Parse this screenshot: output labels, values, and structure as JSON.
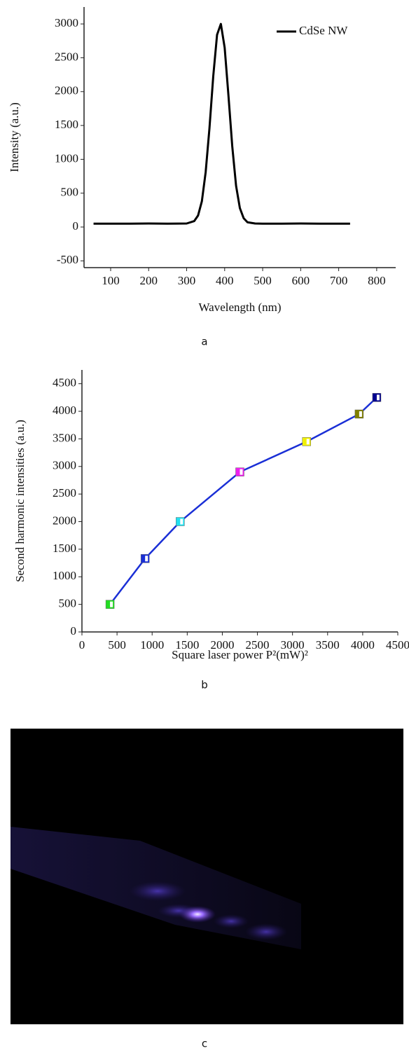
{
  "chart_data": [
    {
      "type": "line",
      "ylabel": "Intensity (a.u.)",
      "xlabel": "Wavelength (nm)",
      "x": [
        55,
        100,
        150,
        200,
        250,
        300,
        320,
        330,
        340,
        350,
        360,
        370,
        380,
        390,
        400,
        410,
        420,
        430,
        440,
        450,
        460,
        480,
        500,
        550,
        600,
        650,
        700,
        730
      ],
      "series": [
        {
          "name": "CdSe NW",
          "color": "#000000",
          "values": [
            50,
            50,
            50,
            52,
            50,
            52,
            88,
            170,
            380,
            810,
            1460,
            2230,
            2840,
            3000,
            2650,
            1940,
            1190,
            610,
            280,
            130,
            70,
            52,
            50,
            50,
            52,
            50,
            50,
            50
          ]
        }
      ],
      "xlim": [
        30,
        850
      ],
      "xticks": [
        100,
        200,
        300,
        400,
        500,
        600,
        700,
        800
      ],
      "ylim": [
        -600,
        3250
      ],
      "yticks": [
        -500,
        0,
        500,
        1000,
        1500,
        2000,
        2500,
        3000
      ],
      "legend": "upper right",
      "grid": false,
      "caption": "a"
    },
    {
      "type": "line",
      "ylabel": "Second harmonic intensities (a.u.)",
      "xlabel": "Square laser power P²(mW)²",
      "x": [
        400,
        900,
        1400,
        2250,
        3200,
        3950,
        4200
      ],
      "series": [
        {
          "color": "#1a2fd6",
          "values": [
            500,
            1330,
            2000,
            2900,
            3450,
            3950,
            4250
          ],
          "marker_colors": [
            "#22dd22",
            "#1a2fd6",
            "#22e0f0",
            "#ee22ee",
            "#f0f000",
            "#808000",
            "#000090"
          ]
        }
      ],
      "xlim": [
        0,
        4500
      ],
      "xticks": [
        0,
        500,
        1000,
        1500,
        2000,
        2500,
        3000,
        3500,
        4000,
        4500
      ],
      "ylim": [
        0,
        4750
      ],
      "yticks": [
        0,
        500,
        1000,
        1500,
        2000,
        2500,
        3000,
        3500,
        4000,
        4500
      ],
      "grid": false,
      "caption": "b"
    }
  ],
  "image_caption": "c"
}
